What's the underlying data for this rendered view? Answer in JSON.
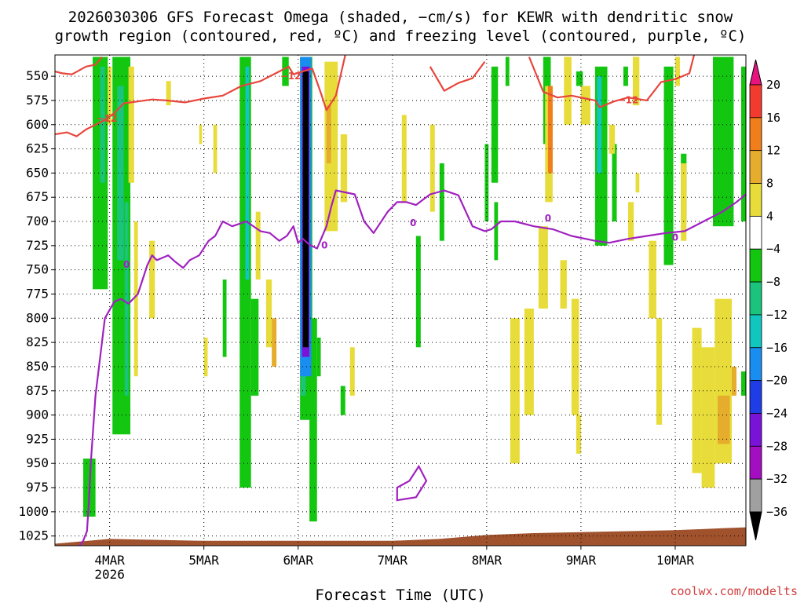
{
  "chart_data": {
    "type": "heatmap",
    "title_line1": "2026030306 GFS Forecast Omega (shaded, −cm/s) for KEWR with dendritic snow",
    "title_line2": "growth region (contoured, red, ºC) and freezing level (contoured, purple, ºC)",
    "xlabel": "Forecast Time (UTC)",
    "credit": "coolwx.com/modelts",
    "x_range_days": [
      3.42,
      10.75
    ],
    "x_ticks": [
      {
        "day": 4,
        "label": "4MAR",
        "sub": "2026"
      },
      {
        "day": 5,
        "label": "5MAR",
        "sub": ""
      },
      {
        "day": 6,
        "label": "6MAR",
        "sub": ""
      },
      {
        "day": 7,
        "label": "7MAR",
        "sub": ""
      },
      {
        "day": 8,
        "label": "8MAR",
        "sub": ""
      },
      {
        "day": 9,
        "label": "9MAR",
        "sub": ""
      },
      {
        "day": 10,
        "label": "10MAR",
        "sub": ""
      }
    ],
    "y_range_hpa": [
      528,
      1035
    ],
    "y_ticks": [
      "550",
      "575",
      "600",
      "625",
      "650",
      "675",
      "700",
      "725",
      "750",
      "775",
      "800",
      "825",
      "850",
      "875",
      "900",
      "925",
      "950",
      "975",
      "1000",
      "1025"
    ],
    "colorbar": {
      "labels": [
        "20",
        "16",
        "12",
        "8",
        "4",
        "−4",
        "−8",
        "−12",
        "−16",
        "−20",
        "−24",
        "−28",
        "−32",
        "−36"
      ],
      "colors": [
        "#e8137e",
        "#f23b2e",
        "#ef7e1b",
        "#e6ad2d",
        "#e8dc3a",
        "#ffffff",
        "#13c60f",
        "#1ac47d",
        "#12c6c0",
        "#1a8ef0",
        "#1f3de6",
        "#7a13d8",
        "#a30fc0",
        "#a0a0a0",
        "#000000"
      ]
    },
    "freezing_level_contour": {
      "label": "0",
      "days": [
        3.68,
        3.72,
        3.76,
        3.78,
        3.8,
        3.85,
        3.95,
        4.05,
        4.12,
        4.2,
        4.3,
        4.4,
        4.45,
        4.5,
        4.55,
        4.62,
        4.7,
        4.78,
        4.85,
        4.95,
        5.05,
        5.12,
        5.2,
        5.3,
        5.45,
        5.6,
        5.7,
        5.8,
        5.88,
        5.95,
        6.0,
        6.05,
        6.12,
        6.2,
        6.3,
        6.35,
        6.4,
        6.5,
        6.6,
        6.7,
        6.8,
        6.95,
        7.05,
        7.15,
        7.25,
        7.4,
        7.55,
        7.7,
        7.85,
        7.98,
        8.05,
        8.15,
        8.3,
        8.5,
        8.7,
        8.9,
        9.05,
        9.15,
        9.3,
        9.5,
        9.7,
        9.9,
        10.1,
        10.3,
        10.5,
        10.65,
        10.75
      ],
      "hpa": [
        1035,
        1030,
        1020,
        990,
        950,
        880,
        800,
        783,
        780,
        785,
        775,
        745,
        735,
        740,
        738,
        735,
        742,
        748,
        740,
        735,
        720,
        715,
        700,
        705,
        700,
        710,
        712,
        720,
        715,
        705,
        722,
        718,
        724,
        728,
        705,
        685,
        668,
        670,
        672,
        700,
        712,
        690,
        680,
        680,
        683,
        672,
        668,
        673,
        705,
        710,
        708,
        700,
        700,
        705,
        708,
        715,
        718,
        720,
        722,
        718,
        715,
        712,
        710,
        700,
        690,
        680,
        672
      ]
    },
    "dgz_contour_lower": {
      "label": "−12",
      "days": [
        3.42,
        3.55,
        3.65,
        3.75,
        3.85,
        3.95,
        4.05,
        4.15,
        4.3,
        4.45,
        4.6,
        4.8,
        5.0,
        5.2,
        5.4,
        5.6,
        5.8,
        5.9,
        5.95,
        6.05,
        6.15,
        6.25,
        6.3,
        6.4,
        6.5
      ],
      "hpa": [
        610,
        608,
        612,
        605,
        600,
        595,
        588,
        578,
        576,
        574,
        575,
        577,
        573,
        570,
        560,
        555,
        545,
        540,
        548,
        545,
        542,
        570,
        585,
        570,
        528
      ]
    },
    "dgz_contour_upper": {
      "label": "−12",
      "days": [
        3.42,
        3.5,
        3.6,
        3.75,
        3.85,
        3.92
      ],
      "hpa": [
        545,
        547,
        548,
        540,
        538,
        530
      ]
    }
  }
}
